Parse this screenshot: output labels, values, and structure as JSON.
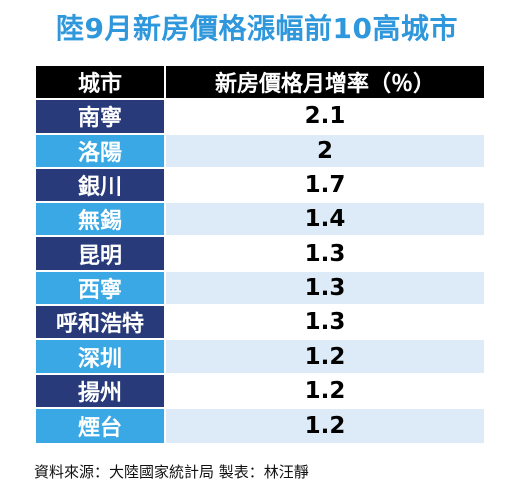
{
  "title": "陸9月新房價格漲幅前10高城市",
  "colors": {
    "title": "#2f97dc",
    "dark_row": "#283a7a",
    "light_row": "#3aa8e4",
    "value_bg": "#dcebf7"
  },
  "table": {
    "headers": [
      "城市",
      "新房價格月增率（％）"
    ],
    "rows": [
      {
        "city": "南寧",
        "value": "2.1"
      },
      {
        "city": "洛陽",
        "value": "2"
      },
      {
        "city": "銀川",
        "value": "1.7"
      },
      {
        "city": "無錫",
        "value": "1.4"
      },
      {
        "city": "昆明",
        "value": "1.3"
      },
      {
        "city": "西寧",
        "value": "1.3"
      },
      {
        "city": "呼和浩特",
        "value": "1.3"
      },
      {
        "city": "深圳",
        "value": "1.2"
      },
      {
        "city": "揚州",
        "value": "1.2"
      },
      {
        "city": "煙台",
        "value": "1.2"
      }
    ]
  },
  "source": "資料來源：大陸國家統計局 製表：林汪靜"
}
